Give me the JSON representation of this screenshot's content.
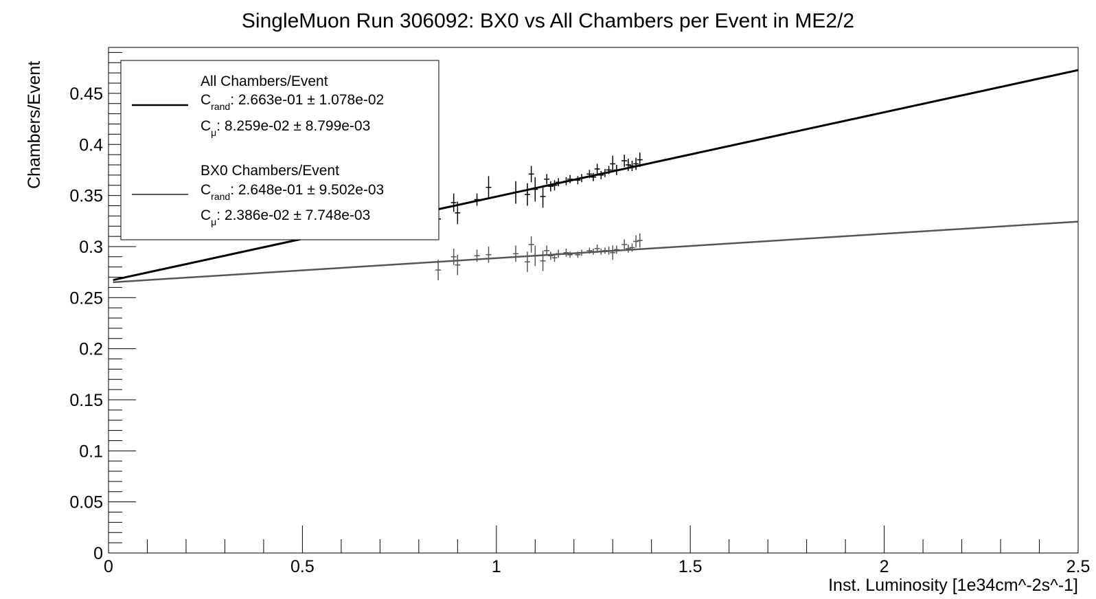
{
  "chart_data": {
    "type": "scatter",
    "title": "SingleMuon Run 306092: BX0 vs All Chambers per Event in ME2/2",
    "xlabel": "Inst. Luminosity [1e34cm^-2s^-1]",
    "ylabel": "Chambers/Event",
    "xlim": [
      0,
      2.5
    ],
    "ylim": [
      0,
      0.495
    ],
    "xticks": [
      0,
      0.5,
      1,
      1.5,
      2,
      2.5
    ],
    "xtick_labels": [
      "0",
      "0.5",
      "1",
      "1.5",
      "2",
      "2.5"
    ],
    "yticks": [
      0,
      0.05,
      0.1,
      0.15,
      0.2,
      0.25,
      0.3,
      0.35,
      0.4,
      0.45
    ],
    "ytick_labels": [
      "0",
      "0.05",
      "0.1",
      "0.15",
      "0.2",
      "0.25",
      "0.3",
      "0.35",
      "0.4",
      "0.45"
    ],
    "grid": false,
    "legend_position": "top-left",
    "legend": [
      {
        "name": "All Chambers/Event",
        "crand": {
          "sym": "C",
          "sub": "rand",
          "text": ": 2.663e-01 ± 1.078e-02"
        },
        "cmu": {
          "sym": "C",
          "sub": "μ",
          "text": ": 8.259e-02  ± 8.799e-03"
        }
      },
      {
        "name": "BX0 Chambers/Event",
        "crand": {
          "sym": "C",
          "sub": "rand",
          "text": ": 2.648e-01 ± 9.502e-03"
        },
        "cmu": {
          "sym": "C",
          "sub": "μ",
          "text": ": 2.386e-02  ± 7.748e-03"
        }
      }
    ],
    "series": [
      {
        "name": "All Chambers/Event",
        "color": "#000000",
        "fit": {
          "intercept": 0.2663,
          "slope": 0.08259
        },
        "points": [
          {
            "x": 0.85,
            "y": 0.327,
            "err": 0.01
          },
          {
            "x": 0.89,
            "y": 0.343,
            "err": 0.009
          },
          {
            "x": 0.9,
            "y": 0.333,
            "err": 0.011
          },
          {
            "x": 0.95,
            "y": 0.346,
            "err": 0.006
          },
          {
            "x": 0.98,
            "y": 0.358,
            "err": 0.011
          },
          {
            "x": 1.05,
            "y": 0.353,
            "err": 0.011
          },
          {
            "x": 1.08,
            "y": 0.351,
            "err": 0.011
          },
          {
            "x": 1.09,
            "y": 0.371,
            "err": 0.008
          },
          {
            "x": 1.1,
            "y": 0.356,
            "err": 0.012
          },
          {
            "x": 1.12,
            "y": 0.349,
            "err": 0.011
          },
          {
            "x": 1.13,
            "y": 0.366,
            "err": 0.005
          },
          {
            "x": 1.14,
            "y": 0.359,
            "err": 0.005
          },
          {
            "x": 1.15,
            "y": 0.36,
            "err": 0.005
          },
          {
            "x": 1.16,
            "y": 0.363,
            "err": 0.004
          },
          {
            "x": 1.18,
            "y": 0.364,
            "err": 0.004
          },
          {
            "x": 1.19,
            "y": 0.366,
            "err": 0.004
          },
          {
            "x": 1.21,
            "y": 0.365,
            "err": 0.004
          },
          {
            "x": 1.22,
            "y": 0.367,
            "err": 0.004
          },
          {
            "x": 1.24,
            "y": 0.371,
            "err": 0.004
          },
          {
            "x": 1.25,
            "y": 0.368,
            "err": 0.004
          },
          {
            "x": 1.26,
            "y": 0.376,
            "err": 0.005
          },
          {
            "x": 1.27,
            "y": 0.37,
            "err": 0.004
          },
          {
            "x": 1.28,
            "y": 0.372,
            "err": 0.004
          },
          {
            "x": 1.29,
            "y": 0.375,
            "err": 0.004
          },
          {
            "x": 1.3,
            "y": 0.381,
            "err": 0.008
          },
          {
            "x": 1.31,
            "y": 0.375,
            "err": 0.005
          },
          {
            "x": 1.33,
            "y": 0.384,
            "err": 0.006
          },
          {
            "x": 1.34,
            "y": 0.38,
            "err": 0.006
          },
          {
            "x": 1.35,
            "y": 0.379,
            "err": 0.005
          },
          {
            "x": 1.36,
            "y": 0.381,
            "err": 0.006
          },
          {
            "x": 1.37,
            "y": 0.385,
            "err": 0.007
          }
        ]
      },
      {
        "name": "BX0 Chambers/Event",
        "color": "#555555",
        "fit": {
          "intercept": 0.2648,
          "slope": 0.02386
        },
        "points": [
          {
            "x": 0.85,
            "y": 0.277,
            "err": 0.01
          },
          {
            "x": 0.89,
            "y": 0.29,
            "err": 0.008
          },
          {
            "x": 0.9,
            "y": 0.282,
            "err": 0.01
          },
          {
            "x": 0.95,
            "y": 0.291,
            "err": 0.006
          },
          {
            "x": 0.98,
            "y": 0.292,
            "err": 0.008
          },
          {
            "x": 1.05,
            "y": 0.293,
            "err": 0.008
          },
          {
            "x": 1.08,
            "y": 0.285,
            "err": 0.01
          },
          {
            "x": 1.09,
            "y": 0.302,
            "err": 0.008
          },
          {
            "x": 1.1,
            "y": 0.291,
            "err": 0.01
          },
          {
            "x": 1.12,
            "y": 0.286,
            "err": 0.01
          },
          {
            "x": 1.13,
            "y": 0.296,
            "err": 0.005
          },
          {
            "x": 1.14,
            "y": 0.291,
            "err": 0.004
          },
          {
            "x": 1.15,
            "y": 0.289,
            "err": 0.004
          },
          {
            "x": 1.16,
            "y": 0.293,
            "err": 0.004
          },
          {
            "x": 1.18,
            "y": 0.294,
            "err": 0.004
          },
          {
            "x": 1.19,
            "y": 0.292,
            "err": 0.003
          },
          {
            "x": 1.21,
            "y": 0.292,
            "err": 0.003
          },
          {
            "x": 1.22,
            "y": 0.294,
            "err": 0.003
          },
          {
            "x": 1.24,
            "y": 0.296,
            "err": 0.003
          },
          {
            "x": 1.25,
            "y": 0.295,
            "err": 0.003
          },
          {
            "x": 1.26,
            "y": 0.298,
            "err": 0.004
          },
          {
            "x": 1.27,
            "y": 0.295,
            "err": 0.003
          },
          {
            "x": 1.28,
            "y": 0.296,
            "err": 0.003
          },
          {
            "x": 1.29,
            "y": 0.296,
            "err": 0.004
          },
          {
            "x": 1.3,
            "y": 0.294,
            "err": 0.007
          },
          {
            "x": 1.31,
            "y": 0.297,
            "err": 0.004
          },
          {
            "x": 1.33,
            "y": 0.302,
            "err": 0.005
          },
          {
            "x": 1.34,
            "y": 0.298,
            "err": 0.004
          },
          {
            "x": 1.35,
            "y": 0.299,
            "err": 0.004
          },
          {
            "x": 1.36,
            "y": 0.305,
            "err": 0.006
          },
          {
            "x": 1.37,
            "y": 0.306,
            "err": 0.007
          }
        ]
      }
    ]
  }
}
